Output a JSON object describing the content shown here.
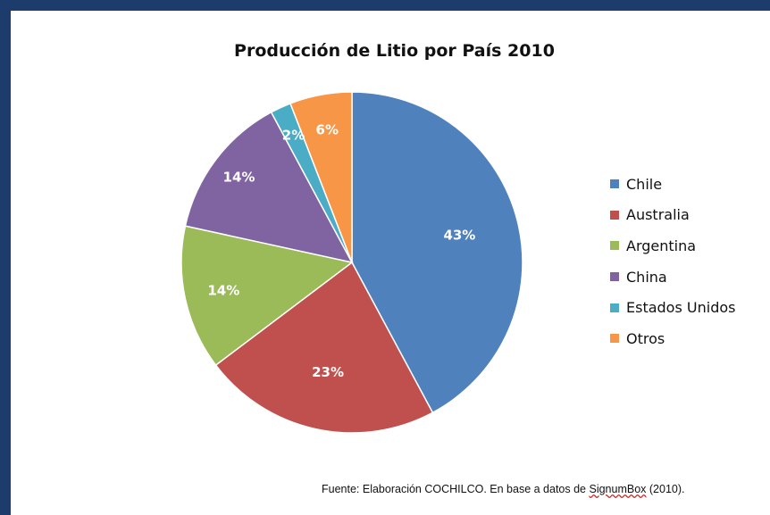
{
  "chart_data": {
    "type": "pie",
    "title": "Producción de Litio por País 2010",
    "categories": [
      "Chile",
      "Australia",
      "Argentina",
      "China",
      "Estados Unidos",
      "Otros"
    ],
    "values": [
      43,
      23,
      14,
      14,
      2,
      6
    ],
    "labels": [
      "43%",
      "23%",
      "14%",
      "14%",
      "2%",
      "6%"
    ],
    "colors": [
      "#4f81bd",
      "#c0504d",
      "#9bbb59",
      "#8064a2",
      "#4bacc6",
      "#f79646"
    ],
    "legend_position": "right"
  },
  "legend": {
    "items": [
      {
        "label": "Chile",
        "color": "#4f81bd"
      },
      {
        "label": "Australia",
        "color": "#c0504d"
      },
      {
        "label": "Argentina",
        "color": "#9bbb59"
      },
      {
        "label": "China",
        "color": "#8064a2"
      },
      {
        "label": "Estados Unidos",
        "color": "#4bacc6"
      },
      {
        "label": "Otros",
        "color": "#f79646"
      }
    ]
  },
  "source": {
    "prefix": "Fuente: Elaboración COCHILCO. En base a datos de ",
    "link": "SignumBox",
    "suffix": " (2010)."
  },
  "frame_color": "#1d3c6c"
}
